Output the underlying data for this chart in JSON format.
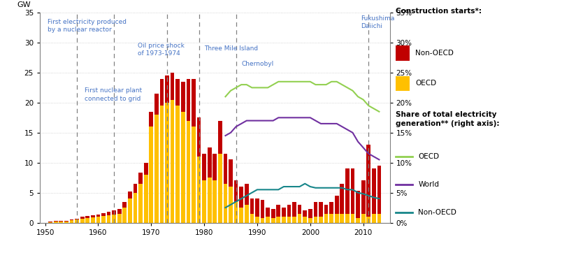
{
  "years": [
    1951,
    1952,
    1953,
    1954,
    1955,
    1956,
    1957,
    1958,
    1959,
    1960,
    1961,
    1962,
    1963,
    1964,
    1965,
    1966,
    1967,
    1968,
    1969,
    1970,
    1971,
    1972,
    1973,
    1974,
    1975,
    1976,
    1977,
    1978,
    1979,
    1980,
    1981,
    1982,
    1983,
    1984,
    1985,
    1986,
    1987,
    1988,
    1989,
    1990,
    1991,
    1992,
    1993,
    1994,
    1995,
    1996,
    1997,
    1998,
    1999,
    2000,
    2001,
    2002,
    2003,
    2004,
    2005,
    2006,
    2007,
    2008,
    2009,
    2010,
    2011,
    2012,
    2013
  ],
  "oecd_bars": [
    0.1,
    0.15,
    0.15,
    0.2,
    0.4,
    0.5,
    0.7,
    0.8,
    0.9,
    1.0,
    1.1,
    1.2,
    1.3,
    1.5,
    2.5,
    4.0,
    5.0,
    6.5,
    8.0,
    16.0,
    18.0,
    19.5,
    20.0,
    20.5,
    19.5,
    18.5,
    17.0,
    16.0,
    11.0,
    7.0,
    7.5,
    7.0,
    11.5,
    6.5,
    6.0,
    3.5,
    2.5,
    3.0,
    1.5,
    1.0,
    0.8,
    1.0,
    0.8,
    1.0,
    1.0,
    1.0,
    1.0,
    1.5,
    1.0,
    0.8,
    1.0,
    1.0,
    1.5,
    1.5,
    1.5,
    1.5,
    1.5,
    1.5,
    0.8,
    1.5,
    1.0,
    1.5,
    1.5
  ],
  "nonoecd_bars": [
    0.1,
    0.1,
    0.1,
    0.1,
    0.1,
    0.2,
    0.3,
    0.3,
    0.3,
    0.4,
    0.5,
    0.6,
    0.7,
    0.8,
    1.0,
    1.2,
    1.5,
    1.8,
    2.0,
    2.5,
    3.5,
    4.5,
    4.5,
    4.5,
    4.5,
    5.0,
    7.0,
    8.0,
    6.5,
    4.5,
    5.0,
    4.5,
    5.5,
    5.0,
    4.5,
    3.5,
    3.5,
    3.5,
    2.5,
    3.0,
    3.0,
    1.5,
    1.5,
    2.0,
    1.5,
    2.0,
    2.5,
    1.5,
    1.0,
    1.5,
    2.5,
    2.5,
    1.5,
    2.0,
    3.0,
    5.0,
    7.5,
    7.5,
    4.5,
    5.5,
    12.0,
    7.5,
    8.0
  ],
  "oecd_share_years": [
    1984,
    1985,
    1986,
    1987,
    1988,
    1989,
    1990,
    1991,
    1992,
    1993,
    1994,
    1995,
    1996,
    1997,
    1998,
    1999,
    2000,
    2001,
    2002,
    2003,
    2004,
    2005,
    2006,
    2007,
    2008,
    2009,
    2010,
    2011,
    2012,
    2013
  ],
  "oecd_share_vals": [
    21.0,
    22.0,
    22.5,
    23.0,
    23.0,
    22.5,
    22.5,
    22.5,
    22.5,
    23.0,
    23.5,
    23.5,
    23.5,
    23.5,
    23.5,
    23.5,
    23.5,
    23.0,
    23.0,
    23.0,
    23.5,
    23.5,
    23.0,
    22.5,
    22.0,
    21.0,
    20.5,
    19.5,
    19.0,
    18.5
  ],
  "world_share_years": [
    1984,
    1985,
    1986,
    1987,
    1988,
    1989,
    1990,
    1991,
    1992,
    1993,
    1994,
    1995,
    1996,
    1997,
    1998,
    1999,
    2000,
    2001,
    2002,
    2003,
    2004,
    2005,
    2006,
    2007,
    2008,
    2009,
    2010,
    2011,
    2012,
    2013
  ],
  "world_share_vals": [
    14.5,
    15.0,
    16.0,
    16.5,
    17.0,
    17.0,
    17.0,
    17.0,
    17.0,
    17.0,
    17.5,
    17.5,
    17.5,
    17.5,
    17.5,
    17.5,
    17.5,
    17.0,
    16.5,
    16.5,
    16.5,
    16.5,
    16.0,
    15.5,
    15.0,
    13.5,
    12.5,
    11.5,
    11.0,
    10.5
  ],
  "nonoecd_share_years": [
    1984,
    1985,
    1986,
    1987,
    1988,
    1989,
    1990,
    1991,
    1992,
    1993,
    1994,
    1995,
    1996,
    1997,
    1998,
    1999,
    2000,
    2001,
    2002,
    2003,
    2004,
    2005,
    2006,
    2007,
    2008,
    2009,
    2010,
    2011,
    2012,
    2013
  ],
  "nonoecd_share_vals": [
    2.5,
    3.0,
    3.5,
    4.0,
    4.5,
    5.0,
    5.5,
    5.5,
    5.5,
    5.5,
    5.5,
    6.0,
    6.0,
    6.0,
    6.0,
    6.5,
    6.0,
    5.8,
    5.8,
    5.8,
    5.8,
    5.8,
    5.8,
    5.5,
    5.5,
    5.0,
    4.8,
    4.5,
    4.2,
    4.0
  ],
  "vlines": [
    1956,
    1963,
    1973,
    1979,
    1986,
    2011
  ],
  "bar_color_oecd": "#FFC000",
  "bar_color_nonoecd": "#C00000",
  "line_color_oecd": "#92D050",
  "line_color_world": "#7030A0",
  "line_color_nonoecd": "#17868A",
  "annotation_color": "#4472C4",
  "ylim": [
    0,
    35
  ],
  "ylabel_left": "GW",
  "yticks_left": [
    0,
    5,
    10,
    15,
    20,
    25,
    30,
    35
  ],
  "yticks_right_vals": [
    0,
    5,
    10,
    15,
    20,
    25,
    30,
    35
  ],
  "yticks_right_labels": [
    "0%",
    "5%",
    "10%",
    "15%",
    "20%",
    "25%",
    "30%",
    "35%"
  ],
  "xlim": [
    1949,
    2015
  ],
  "xticks": [
    1950,
    1960,
    1970,
    1980,
    1990,
    2000,
    2010
  ],
  "background_color": "#FFFFFF",
  "grid_color": "#C8C8C8"
}
